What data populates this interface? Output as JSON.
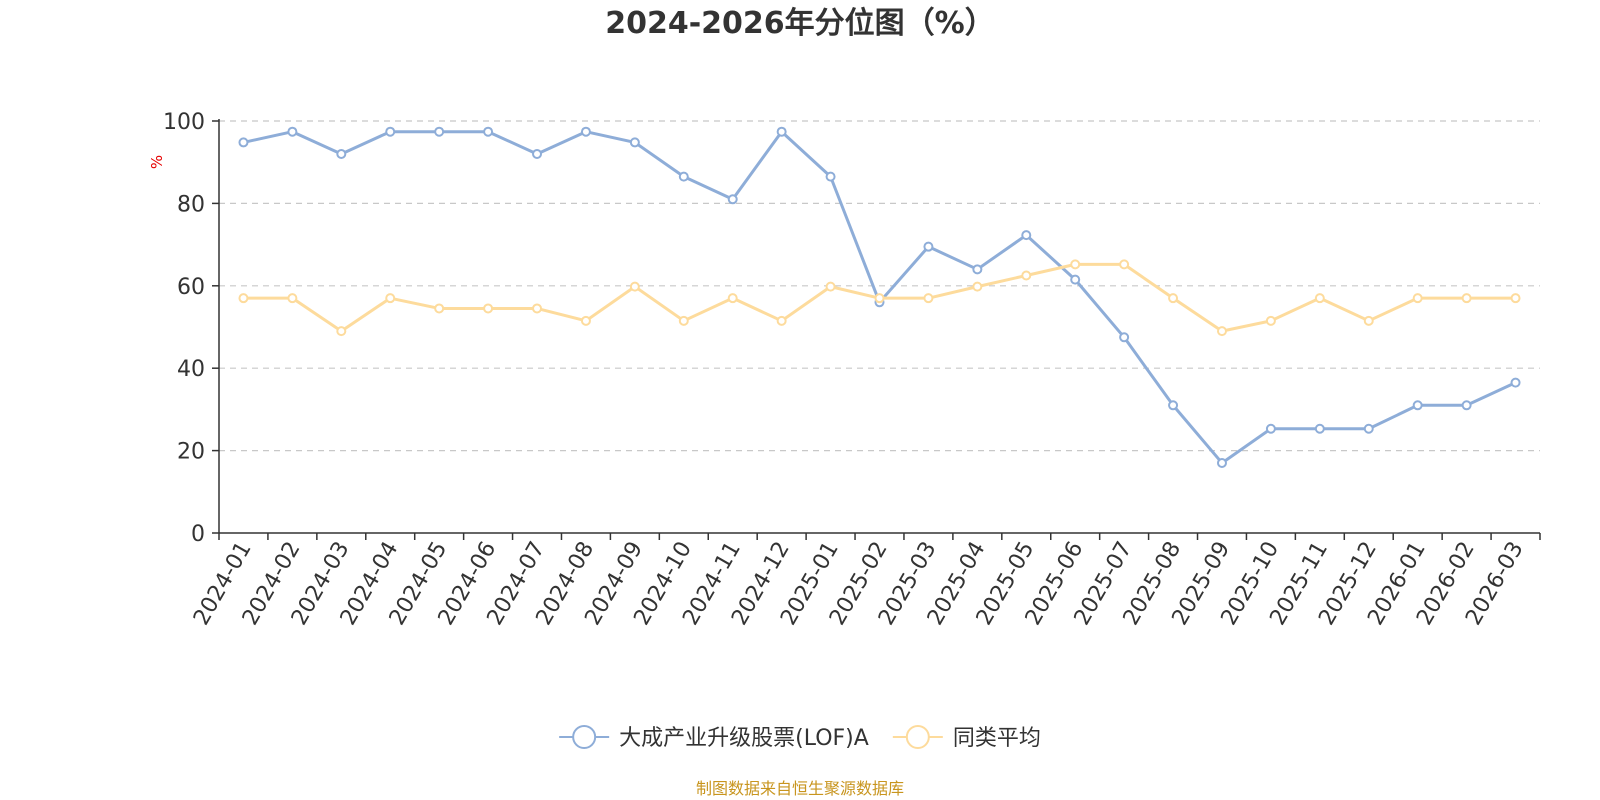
{
  "chart_data": {
    "type": "line",
    "title": "2024-2026年分位图（%）",
    "ylabel": "%",
    "ylim": [
      0,
      100
    ],
    "yticks": [
      0,
      20,
      40,
      60,
      80,
      100
    ],
    "grid": true,
    "legend_position": "bottom-center",
    "categories": [
      "2024-01",
      "2024-02",
      "2024-03",
      "2024-04",
      "2024-05",
      "2024-06",
      "2024-07",
      "2024-08",
      "2024-09",
      "2024-10",
      "2024-11",
      "2024-12",
      "2025-01",
      "2025-02",
      "2025-03",
      "2025-04",
      "2025-05",
      "2025-06",
      "2025-07",
      "2025-08",
      "2025-09",
      "2025-10",
      "2025-11",
      "2025-12",
      "2026-01",
      "2026-02",
      "2026-03"
    ],
    "series": [
      {
        "name": "大成产业升级股票(LOF)A",
        "color": "#8eadd8",
        "values": [
          94.8,
          97.4,
          92.0,
          97.4,
          97.4,
          97.4,
          92.0,
          97.4,
          94.8,
          86.5,
          81.0,
          97.4,
          86.5,
          56.0,
          69.5,
          64.0,
          72.3,
          61.5,
          47.5,
          31.0,
          17.0,
          25.3,
          25.3,
          25.3,
          31.0,
          31.0,
          36.5
        ]
      },
      {
        "name": "同类平均",
        "color": "#fddb9c",
        "values": [
          57.0,
          57.0,
          49.0,
          57.0,
          54.5,
          54.5,
          54.5,
          51.5,
          59.8,
          51.5,
          57.0,
          51.5,
          59.8,
          57.0,
          57.0,
          59.8,
          62.5,
          65.2,
          65.2,
          57.0,
          49.0,
          51.5,
          57.0,
          51.5,
          57.0,
          57.0,
          57.0
        ]
      }
    ]
  },
  "unit_color": "#e60000",
  "source": {
    "text": "制图数据来自恒生聚源数据库",
    "color": "#c8951e"
  }
}
